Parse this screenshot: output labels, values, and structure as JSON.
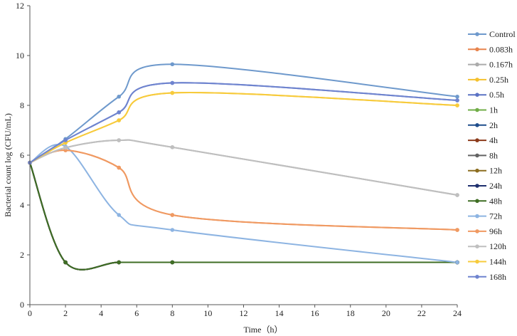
{
  "chart_data": {
    "type": "line",
    "xlabel": "Time（h）",
    "ylabel": "Bacterial count log (CFU/mL)",
    "xlim": [
      0,
      24
    ],
    "ylim": [
      0,
      12
    ],
    "xticks": [
      0,
      2,
      4,
      6,
      8,
      10,
      12,
      14,
      16,
      18,
      20,
      22,
      24
    ],
    "yticks": [
      0,
      2,
      4,
      6,
      8,
      10,
      12
    ],
    "grid": false,
    "legend_position": "right",
    "smooth": true,
    "series": [
      {
        "name": "Control",
        "color": "#6E99CC",
        "points": [
          [
            0,
            5.7
          ],
          [
            2,
            6.65
          ],
          [
            5,
            8.35
          ],
          [
            8,
            9.65
          ],
          [
            24,
            8.35
          ]
        ]
      },
      {
        "name": "0.083h",
        "color": "#E8844D",
        "points": [
          [
            0,
            5.7
          ],
          [
            2,
            6.2
          ],
          [
            5,
            5.5
          ],
          [
            8,
            3.6
          ],
          [
            24,
            3.0
          ]
        ]
      },
      {
        "name": "0.167h",
        "color": "#ABABAB",
        "points": [
          [
            0,
            5.7
          ],
          [
            2,
            6.3
          ],
          [
            5,
            6.6
          ],
          [
            8,
            6.32
          ],
          [
            24,
            4.4
          ]
        ]
      },
      {
        "name": "0.25h",
        "color": "#F5C12E",
        "points": [
          [
            0,
            5.7
          ],
          [
            2,
            6.5
          ],
          [
            5,
            7.4
          ],
          [
            8,
            8.5
          ],
          [
            24,
            8.0
          ]
        ]
      },
      {
        "name": "0.5h",
        "color": "#5B72C4",
        "points": [
          [
            0,
            5.7
          ],
          [
            2,
            6.6
          ],
          [
            5,
            7.72
          ],
          [
            8,
            8.9
          ],
          [
            24,
            8.2
          ]
        ]
      },
      {
        "name": "1h",
        "color": "#70AD47",
        "points": [
          [
            0,
            5.7
          ],
          [
            2,
            1.7
          ],
          [
            5,
            1.7
          ],
          [
            8,
            1.7
          ],
          [
            24,
            1.7
          ]
        ]
      },
      {
        "name": "2h",
        "color": "#1F4E8C",
        "points": [
          [
            0,
            5.7
          ],
          [
            2,
            1.7
          ],
          [
            5,
            1.7
          ],
          [
            8,
            1.7
          ],
          [
            24,
            1.7
          ]
        ]
      },
      {
        "name": "4h",
        "color": "#8B3A1A",
        "points": [
          [
            0,
            5.7
          ],
          [
            2,
            1.7
          ],
          [
            5,
            1.7
          ],
          [
            8,
            1.7
          ],
          [
            24,
            1.7
          ]
        ]
      },
      {
        "name": "8h",
        "color": "#636363",
        "points": [
          [
            0,
            5.7
          ],
          [
            2,
            1.7
          ],
          [
            5,
            1.7
          ],
          [
            8,
            1.7
          ],
          [
            24,
            1.7
          ]
        ]
      },
      {
        "name": "12h",
        "color": "#8C6D1F",
        "points": [
          [
            0,
            5.7
          ],
          [
            2,
            1.7
          ],
          [
            5,
            1.7
          ],
          [
            8,
            1.7
          ],
          [
            24,
            1.7
          ]
        ]
      },
      {
        "name": "24h",
        "color": "#1E2F6E",
        "points": [
          [
            0,
            5.7
          ],
          [
            2,
            1.7
          ],
          [
            5,
            1.7
          ],
          [
            8,
            1.7
          ],
          [
            24,
            1.7
          ]
        ]
      },
      {
        "name": "48h",
        "color": "#3F6E24",
        "points": [
          [
            0,
            5.7
          ],
          [
            2,
            1.7
          ],
          [
            5,
            1.7
          ],
          [
            8,
            1.7
          ],
          [
            24,
            1.7
          ]
        ]
      },
      {
        "name": "72h",
        "color": "#8DB4E2",
        "points": [
          [
            0,
            5.7
          ],
          [
            2,
            6.35
          ],
          [
            5,
            3.6
          ],
          [
            8,
            3.0
          ],
          [
            24,
            1.7
          ]
        ]
      },
      {
        "name": "96h",
        "color": "#F09A62",
        "points": [
          [
            0,
            5.7
          ],
          [
            2,
            6.2
          ],
          [
            5,
            5.5
          ],
          [
            8,
            3.6
          ],
          [
            24,
            3.0
          ]
        ]
      },
      {
        "name": "120h",
        "color": "#BFBFBF",
        "points": [
          [
            0,
            5.7
          ],
          [
            2,
            6.3
          ],
          [
            5,
            6.6
          ],
          [
            8,
            6.32
          ],
          [
            24,
            4.4
          ]
        ]
      },
      {
        "name": "144h",
        "color": "#F7CB3C",
        "points": [
          [
            0,
            5.7
          ],
          [
            2,
            6.5
          ],
          [
            5,
            7.4
          ],
          [
            8,
            8.5
          ],
          [
            24,
            8.0
          ]
        ]
      },
      {
        "name": "168h",
        "color": "#6F84CF",
        "points": [
          [
            0,
            5.7
          ],
          [
            2,
            6.6
          ],
          [
            5,
            7.72
          ],
          [
            8,
            8.9
          ],
          [
            24,
            8.2
          ]
        ]
      }
    ]
  }
}
